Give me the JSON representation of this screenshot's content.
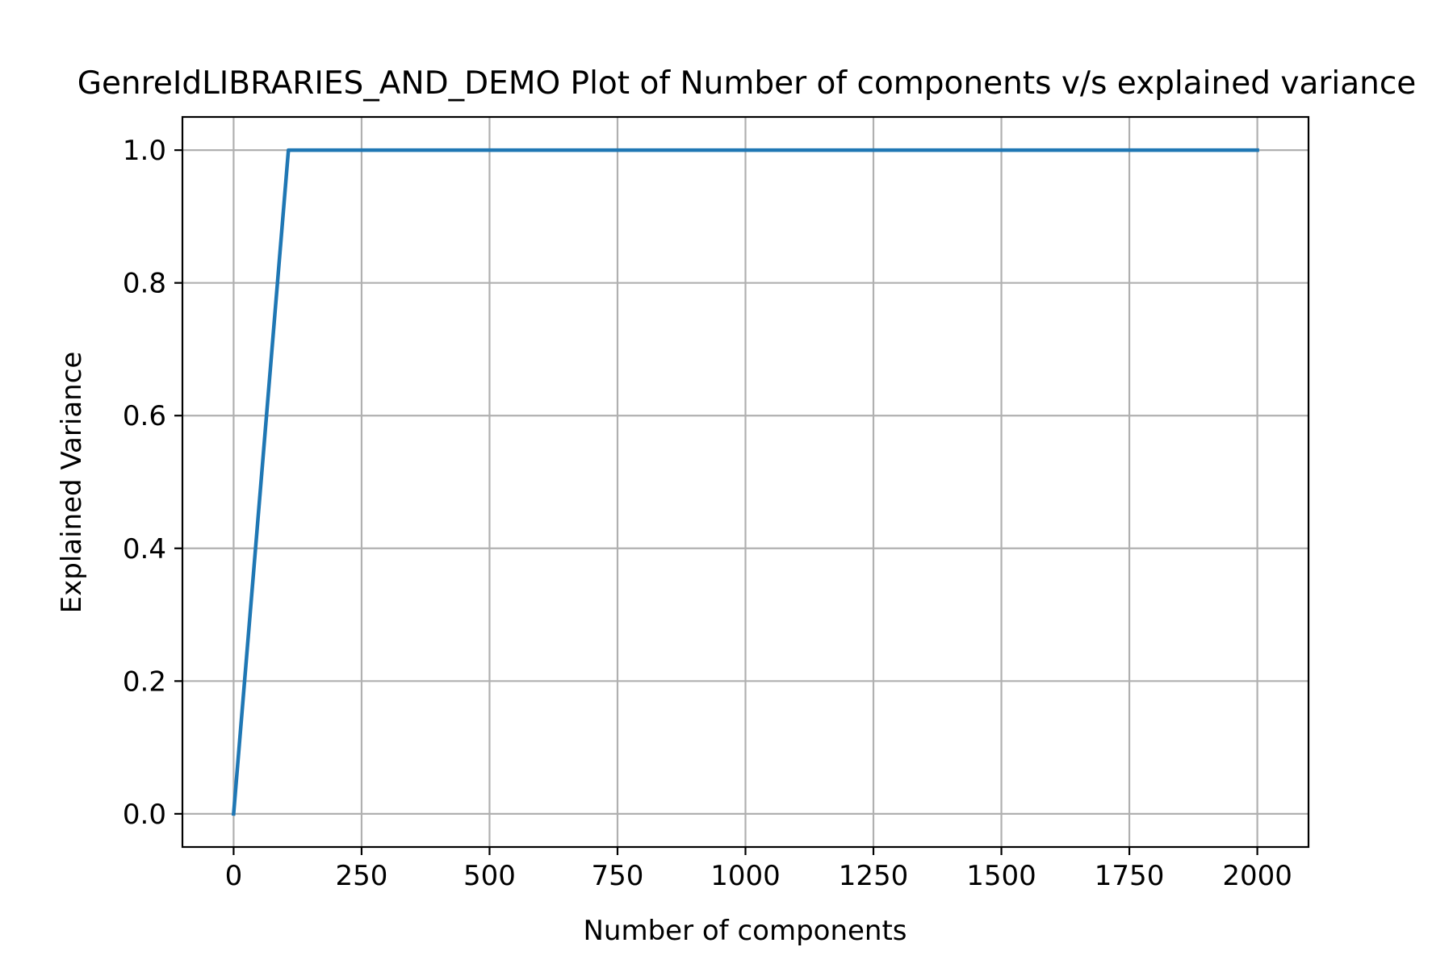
{
  "chart_data": {
    "type": "line",
    "title": "GenreIdLIBRARIES_AND_DEMO Plot of Number of components v/s explained variance",
    "xlabel": "Number of components",
    "ylabel": "Explained Variance",
    "xlim": [
      -100,
      2100
    ],
    "ylim": [
      -0.05,
      1.05
    ],
    "x_ticks": [
      0,
      250,
      500,
      750,
      1000,
      1250,
      1500,
      1750,
      2000
    ],
    "x_tick_labels": [
      "0",
      "250",
      "500",
      "750",
      "1000",
      "1250",
      "1500",
      "1750",
      "2000"
    ],
    "y_ticks": [
      0.0,
      0.2,
      0.4,
      0.6,
      0.8,
      1.0
    ],
    "y_tick_labels": [
      "0.0",
      "0.2",
      "0.4",
      "0.6",
      "0.8",
      "1.0"
    ],
    "grid": true,
    "series": [
      {
        "color": "#1f77b4",
        "x": [
          0,
          107,
          2000
        ],
        "y": [
          0.0,
          1.0,
          1.0
        ]
      }
    ]
  }
}
